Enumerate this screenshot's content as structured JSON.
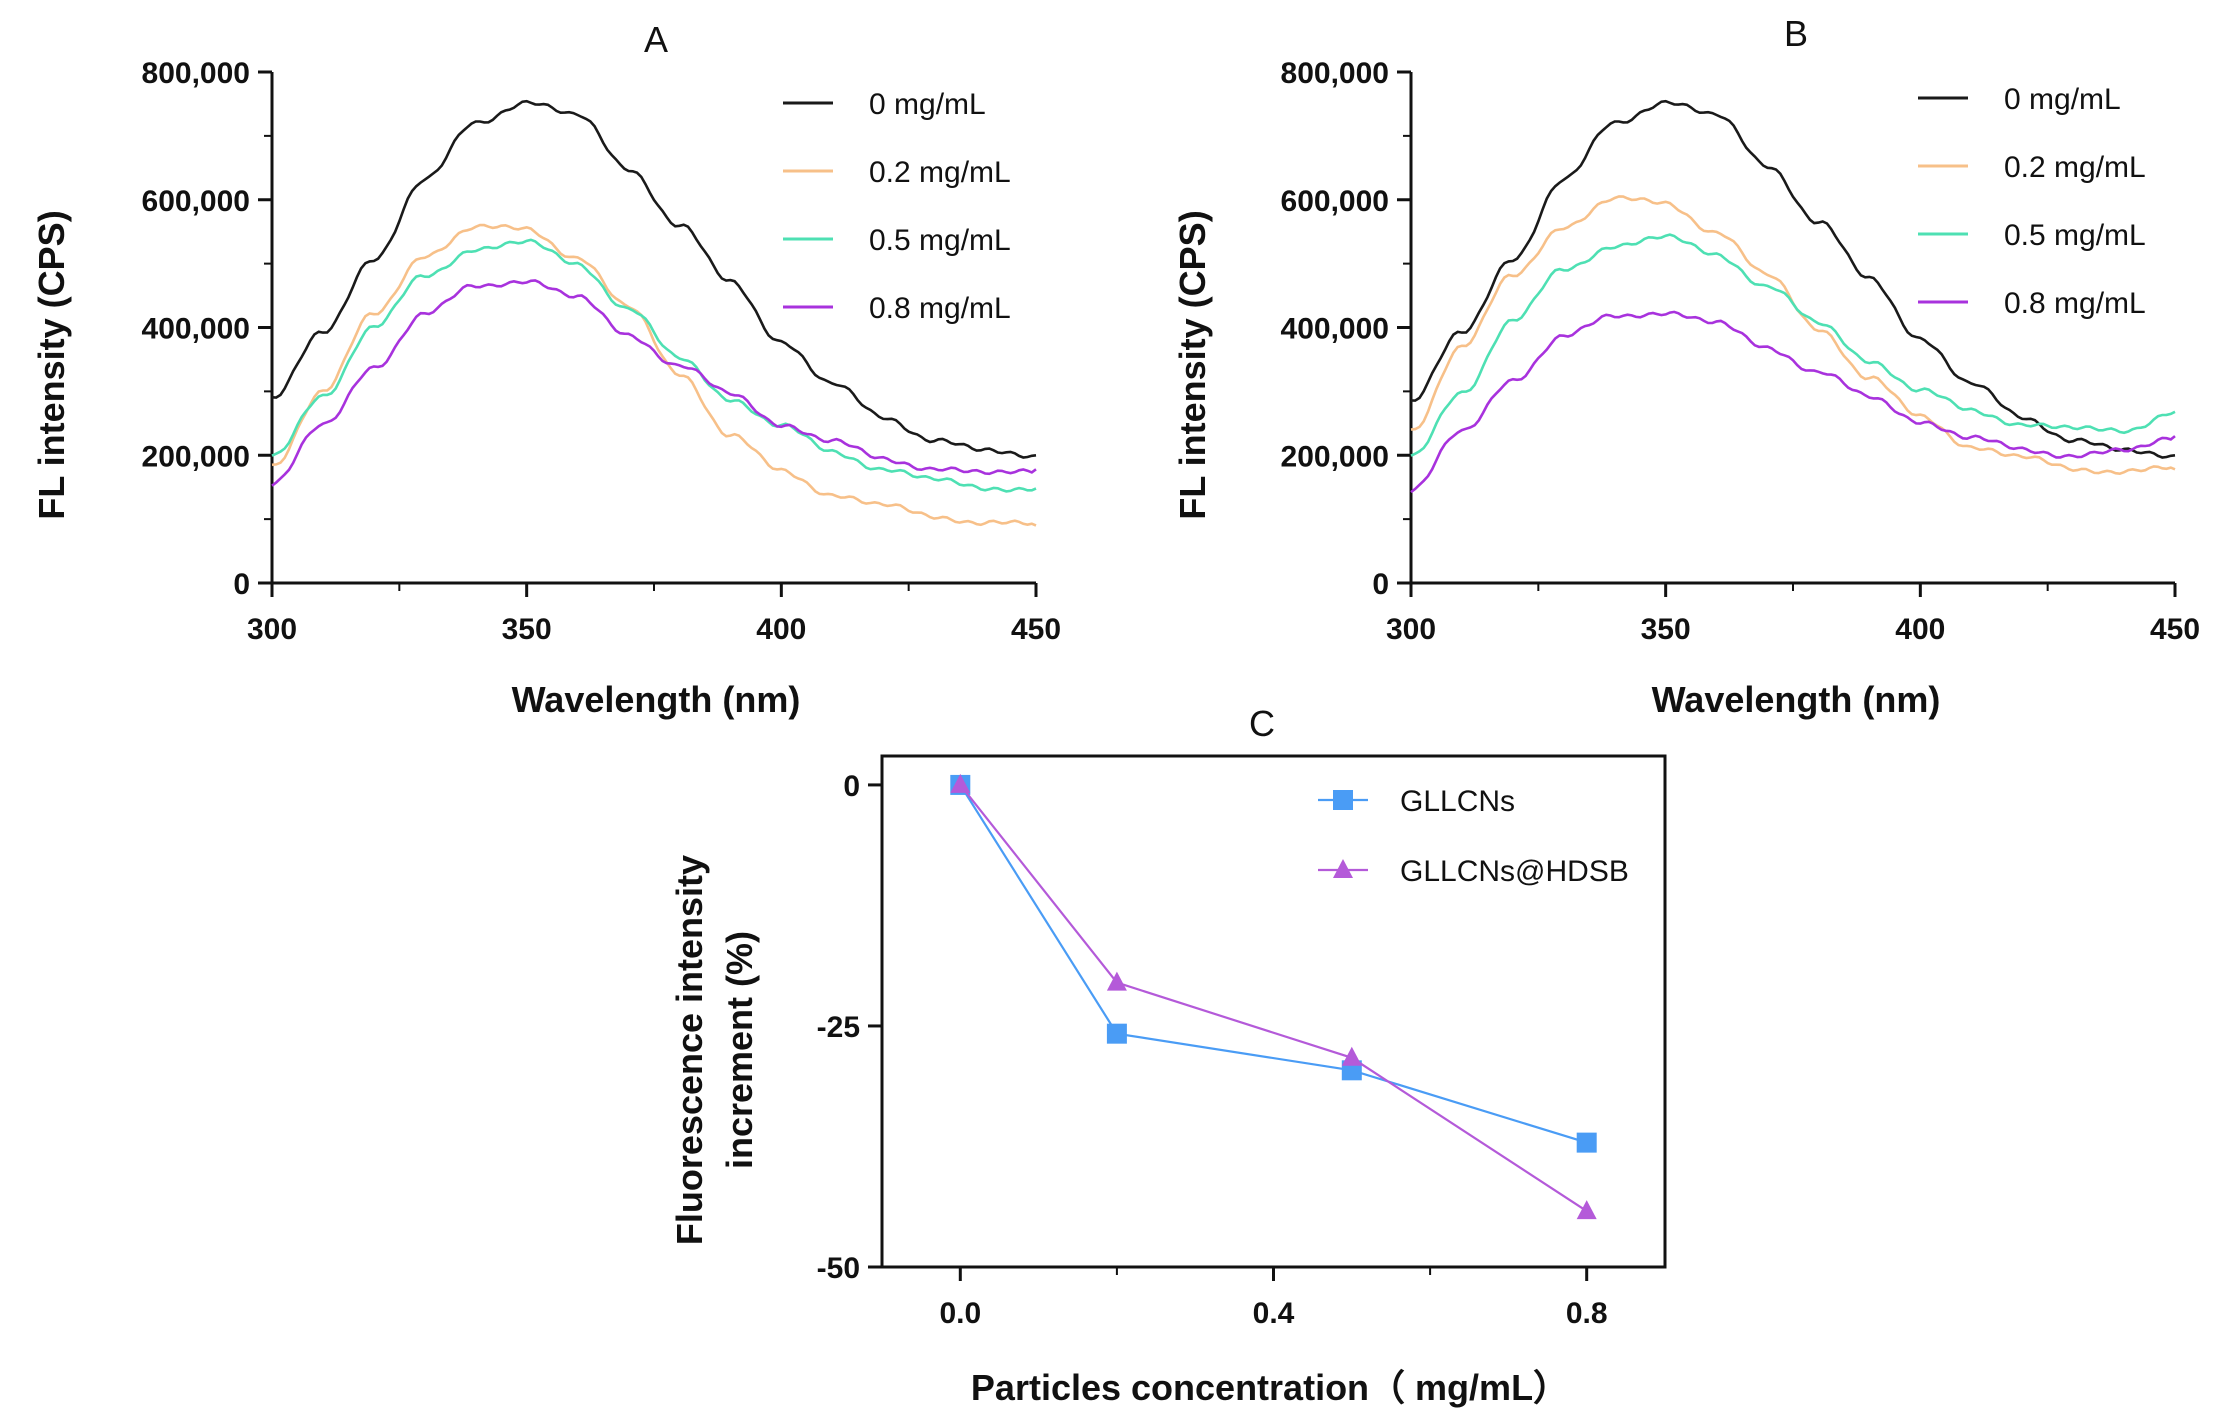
{
  "chart_data": [
    {
      "type": "line",
      "title": "A",
      "xlabel": "Wavelength (nm)",
      "ylabel": "FL intensity (CPS)",
      "xlim": [
        300,
        450
      ],
      "ylim": [
        0,
        800000
      ],
      "xticks": [
        "300",
        "350",
        "400",
        "450"
      ],
      "yticks": [
        "0",
        "200,000",
        "400,000",
        "600,000",
        "800,000"
      ],
      "legend": "top-right",
      "x": [
        300,
        310,
        320,
        330,
        340,
        350,
        360,
        370,
        380,
        390,
        400,
        410,
        420,
        430,
        440,
        450
      ],
      "series": [
        {
          "name": "0 mg/mL",
          "color": "#1a1a1a",
          "values": [
            290000,
            390000,
            510000,
            630000,
            720000,
            755000,
            730000,
            650000,
            560000,
            470000,
            380000,
            310000,
            260000,
            225000,
            205000,
            200000
          ]
        },
        {
          "name": "0.2 mg/mL",
          "color": "#f7c089",
          "values": [
            185000,
            300000,
            420000,
            515000,
            555000,
            555000,
            510000,
            430000,
            330000,
            230000,
            175000,
            140000,
            120000,
            105000,
            95000,
            90000
          ]
        },
        {
          "name": "0.5 mg/mL",
          "color": "#4ee0b3",
          "values": [
            195000,
            295000,
            400000,
            480000,
            525000,
            532000,
            500000,
            430000,
            350000,
            290000,
            245000,
            205000,
            180000,
            160000,
            150000,
            148000
          ]
        },
        {
          "name": "0.8 mg/mL",
          "color": "#a832dd",
          "values": [
            155000,
            245000,
            340000,
            420000,
            465000,
            475000,
            445000,
            390000,
            340000,
            295000,
            250000,
            220000,
            195000,
            180000,
            170000,
            178000
          ]
        }
      ]
    },
    {
      "type": "line",
      "title": "B",
      "xlabel": "Wavelength (nm)",
      "ylabel": "FL intensity (CPS)",
      "xlim": [
        300,
        450
      ],
      "ylim": [
        0,
        800000
      ],
      "xticks": [
        "300",
        "350",
        "400",
        "450"
      ],
      "yticks": [
        "0",
        "200,000",
        "400,000",
        "600,000",
        "800,000"
      ],
      "legend": "top-right",
      "x": [
        300,
        310,
        320,
        330,
        340,
        350,
        360,
        370,
        380,
        390,
        400,
        410,
        420,
        430,
        440,
        450
      ],
      "series": [
        {
          "name": "0 mg/mL",
          "color": "#1a1a1a",
          "values": [
            285000,
            390000,
            510000,
            630000,
            720000,
            755000,
            730000,
            655000,
            565000,
            475000,
            385000,
            310000,
            260000,
            225000,
            205000,
            200000
          ]
        },
        {
          "name": "0.2 mg/mL",
          "color": "#f7c089",
          "values": [
            240000,
            370000,
            480000,
            560000,
            600000,
            595000,
            550000,
            480000,
            400000,
            320000,
            260000,
            215000,
            195000,
            180000,
            175000,
            178000
          ]
        },
        {
          "name": "0.5 mg/mL",
          "color": "#4ee0b3",
          "values": [
            195000,
            300000,
            410000,
            490000,
            530000,
            540000,
            515000,
            465000,
            405000,
            350000,
            300000,
            270000,
            250000,
            240000,
            240000,
            268000
          ]
        },
        {
          "name": "0.8 mg/mL",
          "color": "#a832dd",
          "values": [
            145000,
            235000,
            320000,
            385000,
            418000,
            425000,
            405000,
            370000,
            330000,
            290000,
            255000,
            225000,
            210000,
            200000,
            205000,
            230000
          ]
        }
      ]
    },
    {
      "type": "line",
      "title": "C",
      "xlabel": "Particles concentration（ mg/mL）",
      "ylabel_lines": [
        "Fluorescence intensity",
        "increment (%)"
      ],
      "xlim": [
        -0.1,
        0.9
      ],
      "ylim": [
        -50,
        3
      ],
      "xticks": [
        "0.0",
        "0.4",
        "0.8"
      ],
      "yticks": [
        "0",
        "-25",
        "-50"
      ],
      "legend": "top-right",
      "x": [
        0,
        0.2,
        0.5,
        0.8
      ],
      "series": [
        {
          "name": "GLLCNs",
          "color": "#4a9cf5",
          "marker": "square",
          "values": [
            0,
            -25.8,
            -29.6,
            -37.1
          ]
        },
        {
          "name": "GLLCNs@HDSB",
          "color": "#b45ad9",
          "marker": "triangle",
          "values": [
            0,
            -20.5,
            -28.3,
            -44.2
          ]
        }
      ]
    }
  ]
}
